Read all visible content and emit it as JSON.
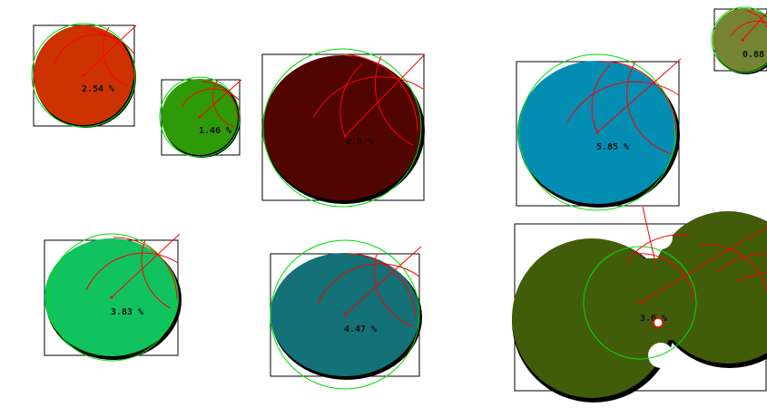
{
  "blobs": [
    {
      "id": "blob-1",
      "label": "2.54 %",
      "fill": "#cc3300"
    },
    {
      "id": "blob-2",
      "label": "1.46 %",
      "fill": "#2e9a08"
    },
    {
      "id": "blob-3",
      "label": "0.0 %",
      "fill": "#500501"
    },
    {
      "id": "blob-4",
      "label": "5.85 %",
      "fill": "#048db2"
    },
    {
      "id": "blob-5",
      "label": "0.88",
      "fill": "#758432"
    },
    {
      "id": "blob-6",
      "label": "3.83 %",
      "fill": "#11c35f"
    },
    {
      "id": "blob-7",
      "label": "4.47 %",
      "fill": "#137177"
    },
    {
      "id": "blob-8",
      "label": "3.6 %",
      "fill": "#415d0a"
    }
  ],
  "colors": {
    "bounding_box": "#000000",
    "fit_circle": "#00dd00",
    "construction_arcs": "#ff0000",
    "outline": "#000000"
  }
}
